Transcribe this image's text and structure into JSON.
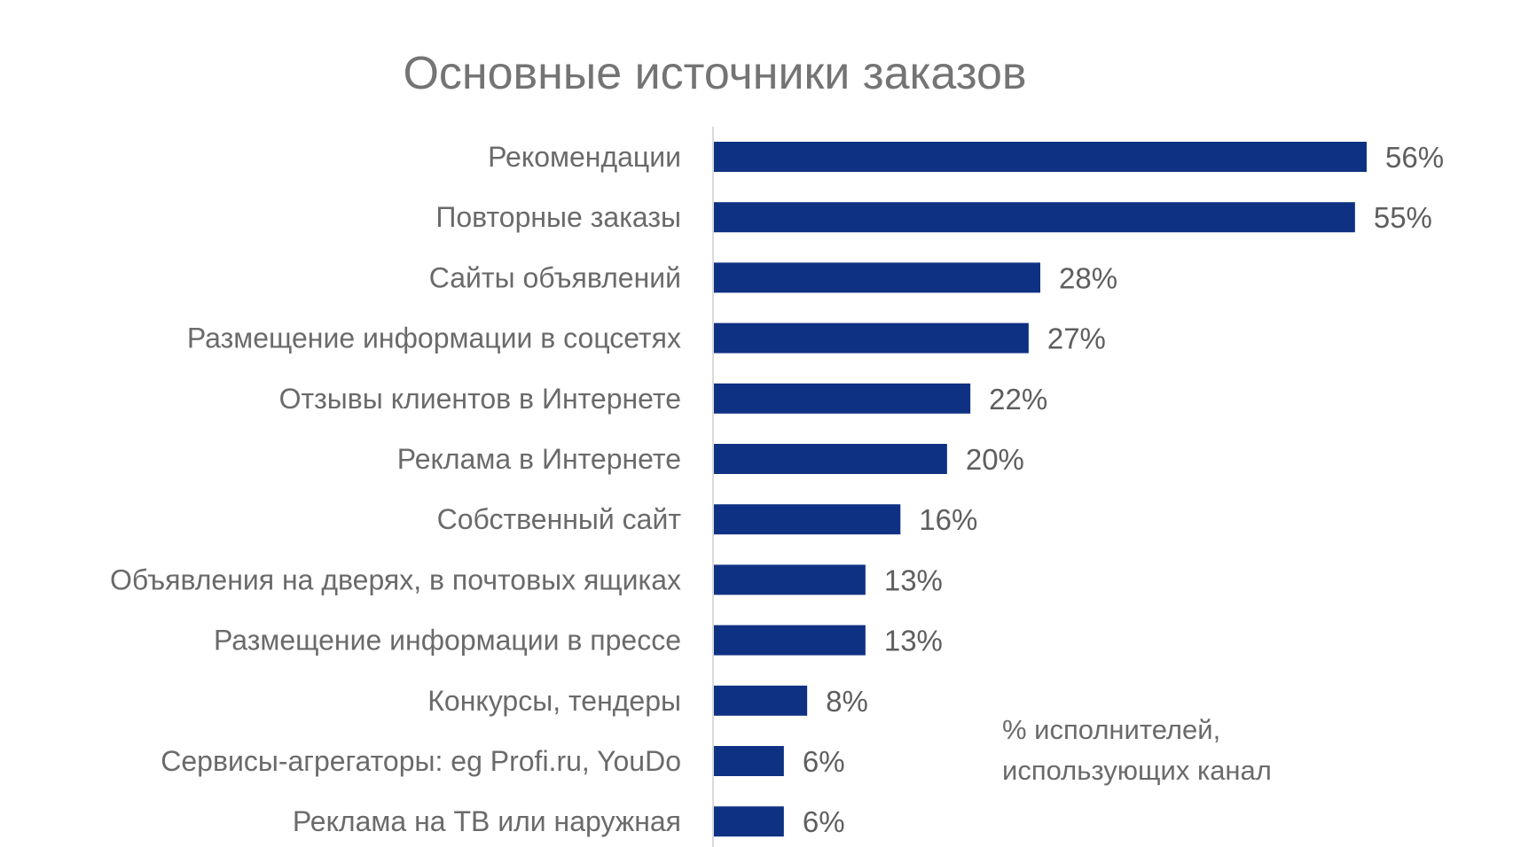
{
  "chart_data": {
    "type": "bar",
    "orientation": "horizontal",
    "title": "Основные источники заказов",
    "xlabel": "",
    "ylabel": "",
    "xlim": [
      0,
      56
    ],
    "grid": false,
    "categories": [
      "Рекомендации",
      "Повторные заказы",
      "Сайты объявлений",
      "Размещение информации в соцсетях",
      "Отзывы клиентов в Интернете",
      "Реклама в Интернете",
      "Собственный сайт",
      "Объявления на дверях, в почтовых ящиках",
      "Размещение информации в прессе",
      "Конкурсы, тендеры",
      "Сервисы-агрегаторы: eg Profi.ru, YouDo",
      "Реклама на ТВ или наружная"
    ],
    "values": [
      56,
      55,
      28,
      27,
      22,
      20,
      16,
      13,
      13,
      8,
      6,
      6
    ],
    "value_labels": [
      "56%",
      "55%",
      "28%",
      "27%",
      "22%",
      "20%",
      "16%",
      "13%",
      "13%",
      "8%",
      "6%",
      "6%"
    ],
    "annotation": [
      "% исполнителей,",
      "использующих канал"
    ],
    "bar_color": "#0f3183"
  }
}
